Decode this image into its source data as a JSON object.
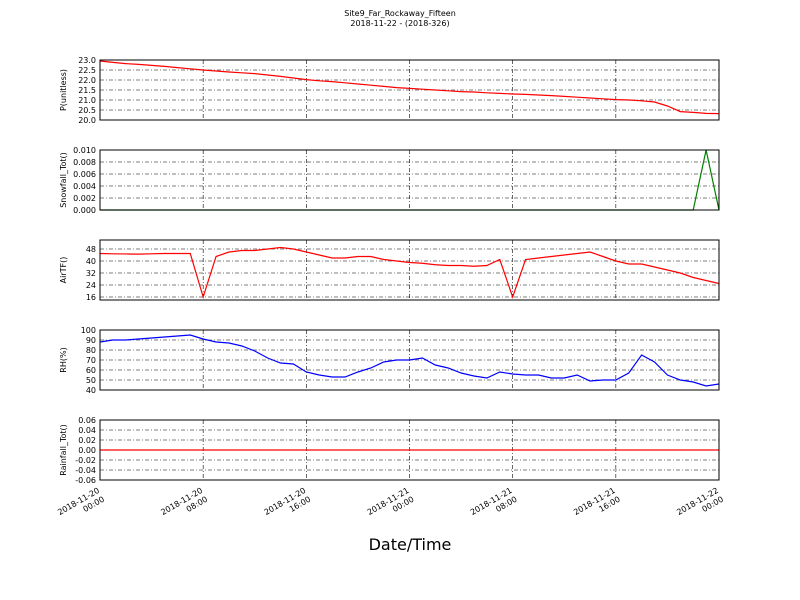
{
  "title": "Site9_Far_Rockaway_Fifteen",
  "subtitle": "2018-11-22 - (2018-326)",
  "xlabel": "Date/Time",
  "x": [
    "2018-11-20 00:00",
    "2018-11-20 01:00",
    "2018-11-20 02:00",
    "2018-11-20 03:00",
    "2018-11-20 04:00",
    "2018-11-20 05:00",
    "2018-11-20 06:00",
    "2018-11-20 07:00",
    "2018-11-20 08:00",
    "2018-11-20 09:00",
    "2018-11-20 10:00",
    "2018-11-20 11:00",
    "2018-11-20 12:00",
    "2018-11-20 13:00",
    "2018-11-20 14:00",
    "2018-11-20 15:00",
    "2018-11-20 16:00",
    "2018-11-20 17:00",
    "2018-11-20 18:00",
    "2018-11-20 19:00",
    "2018-11-20 20:00",
    "2018-11-20 21:00",
    "2018-11-20 22:00",
    "2018-11-20 23:00",
    "2018-11-21 00:00",
    "2018-11-21 01:00",
    "2018-11-21 02:00",
    "2018-11-21 03:00",
    "2018-11-21 04:00",
    "2018-11-21 05:00",
    "2018-11-21 06:00",
    "2018-11-21 07:00",
    "2018-11-21 08:00",
    "2018-11-21 09:00",
    "2018-11-21 10:00",
    "2018-11-21 11:00",
    "2018-11-21 12:00",
    "2018-11-21 13:00",
    "2018-11-21 14:00",
    "2018-11-21 15:00",
    "2018-11-21 16:00",
    "2018-11-21 17:00",
    "2018-11-21 18:00",
    "2018-11-21 19:00",
    "2018-11-21 20:00",
    "2018-11-21 21:00",
    "2018-11-21 22:00",
    "2018-11-21 23:00",
    "2018-11-22 00:00"
  ],
  "xlim": [
    "2018-11-20 00:00",
    "2018-11-22 00:00"
  ],
  "xticks": [
    "2018-11-20 00:00",
    "2018-11-20 08:00",
    "2018-11-20 16:00",
    "2018-11-21 00:00",
    "2018-11-21 08:00",
    "2018-11-21 16:00",
    "2018-11-22 00:00"
  ],
  "chart_data": [
    {
      "type": "line",
      "ylabel": "P(unitless)",
      "color": "#ff0000",
      "grid": true,
      "values": [
        22.95,
        22.88,
        22.82,
        22.78,
        22.73,
        22.68,
        22.62,
        22.56,
        22.5,
        22.45,
        22.4,
        22.36,
        22.32,
        22.25,
        22.18,
        22.1,
        22.02,
        21.96,
        21.92,
        21.86,
        21.8,
        21.74,
        21.68,
        21.62,
        21.58,
        21.54,
        21.5,
        21.46,
        21.42,
        21.4,
        21.36,
        21.33,
        21.3,
        21.28,
        21.25,
        21.22,
        21.18,
        21.14,
        21.1,
        21.06,
        21.02,
        21.0,
        20.96,
        20.9,
        20.7,
        20.42,
        20.38,
        20.33,
        20.32
      ],
      "ylim": [
        20,
        23
      ],
      "yticks": [
        {
          "value": 20,
          "label": "20.0"
        },
        {
          "value": 20.5,
          "label": "20.5"
        },
        {
          "value": 21,
          "label": "21.0"
        },
        {
          "value": 21.5,
          "label": "21.5"
        },
        {
          "value": 22,
          "label": "22.0"
        },
        {
          "value": 22.5,
          "label": "22.5"
        },
        {
          "value": 23,
          "label": "23.0"
        }
      ]
    },
    {
      "type": "line",
      "ylabel": "Snowfall_Tot()",
      "color": "#008000",
      "grid": true,
      "values": [
        0,
        0,
        0,
        0,
        0,
        0,
        0,
        0,
        0,
        0,
        0,
        0,
        0,
        0,
        0,
        0,
        0,
        0,
        0,
        0,
        0,
        0,
        0,
        0,
        0,
        0,
        0,
        0,
        0,
        0,
        0,
        0,
        0,
        0,
        0,
        0,
        0,
        0,
        0,
        0,
        0,
        0,
        0,
        0,
        0,
        0,
        0,
        0.01,
        0
      ],
      "ylim": [
        0,
        0.01
      ],
      "yticks": [
        {
          "value": 0,
          "label": "0.000"
        },
        {
          "value": 0.002,
          "label": "0.002"
        },
        {
          "value": 0.004,
          "label": "0.004"
        },
        {
          "value": 0.006,
          "label": "0.006"
        },
        {
          "value": 0.008,
          "label": "0.008"
        },
        {
          "value": 0.01,
          "label": "0.010"
        }
      ]
    },
    {
      "type": "line",
      "ylabel": "AirTF()",
      "color": "#ff0000",
      "grid": true,
      "values": [
        45,
        44.8,
        44.7,
        44.6,
        44.8,
        45,
        45,
        45,
        16,
        43,
        46,
        47,
        47,
        48,
        49,
        48,
        46,
        44,
        42,
        42,
        43,
        43,
        41,
        40,
        39,
        38.5,
        37.5,
        37,
        37,
        36.5,
        37,
        41,
        16,
        41,
        42,
        43,
        44,
        45,
        46,
        43,
        40,
        38,
        38,
        36,
        34,
        32,
        29,
        27,
        25
      ],
      "ylim": [
        14,
        54
      ],
      "yticks": [
        16,
        24,
        32,
        40,
        48
      ]
    },
    {
      "type": "line",
      "ylabel": "RH(%)",
      "color": "#0000ff",
      "grid": true,
      "values": [
        88,
        90,
        90,
        91,
        92,
        93,
        94,
        95,
        91,
        88,
        87,
        84,
        79,
        72,
        67,
        66,
        58,
        55,
        53,
        53,
        58,
        62,
        68,
        70,
        70,
        72,
        65,
        62,
        57,
        54,
        52,
        58,
        56,
        55,
        55,
        52,
        52,
        55,
        49,
        50,
        50,
        57,
        75,
        68,
        55,
        50,
        48,
        44,
        46
      ],
      "ylim": [
        40,
        100
      ],
      "yticks": [
        40,
        50,
        60,
        70,
        80,
        90,
        100
      ]
    },
    {
      "type": "line",
      "ylabel": "Rainfall_Tot()",
      "color": "#ff0000",
      "grid": true,
      "values": [
        0,
        0,
        0,
        0,
        0,
        0,
        0,
        0,
        0,
        0,
        0,
        0,
        0,
        0,
        0,
        0,
        0,
        0,
        0,
        0,
        0,
        0,
        0,
        0,
        0,
        0,
        0,
        0,
        0,
        0,
        0,
        0,
        0,
        0,
        0,
        0,
        0,
        0,
        0,
        0,
        0,
        0,
        0,
        0,
        0,
        0,
        0,
        0,
        0
      ],
      "ylim": [
        -0.06,
        0.06
      ],
      "yticks": [
        {
          "value": -0.06,
          "label": "-0.06"
        },
        {
          "value": -0.04,
          "label": "-0.04"
        },
        {
          "value": -0.02,
          "label": "-0.02"
        },
        {
          "value": 0,
          "label": "0.00"
        },
        {
          "value": 0.02,
          "label": "0.02"
        },
        {
          "value": 0.04,
          "label": "0.04"
        },
        {
          "value": 0.06,
          "label": "0.06"
        }
      ]
    }
  ]
}
